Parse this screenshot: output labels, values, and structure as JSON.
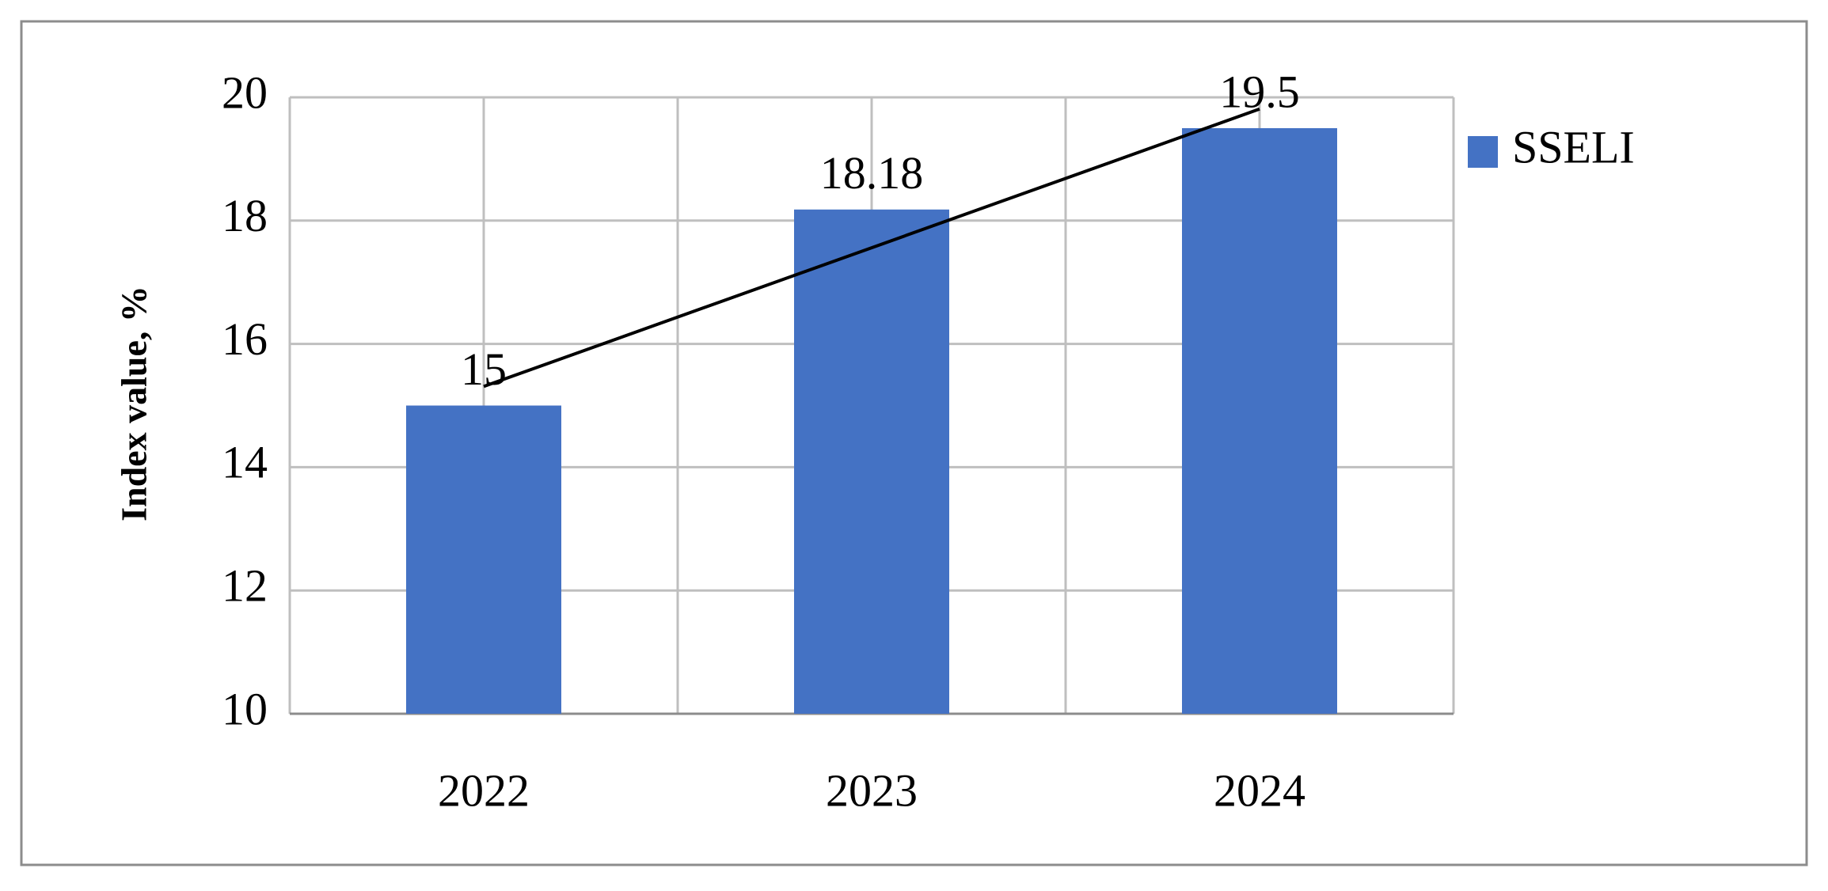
{
  "chart_data": {
    "type": "bar",
    "y_label": "Index value, %",
    "categories": [
      "2022",
      "2023",
      "2024"
    ],
    "series": [
      {
        "name": "SSELI",
        "color": "#4472c4",
        "values": [
          15,
          18.18,
          19.5
        ]
      }
    ],
    "ylim": [
      10,
      20
    ],
    "yticks": [
      10,
      12,
      14,
      16,
      18,
      20
    ],
    "grid": true,
    "legend": "right",
    "data_labels": true,
    "trendline": true
  }
}
